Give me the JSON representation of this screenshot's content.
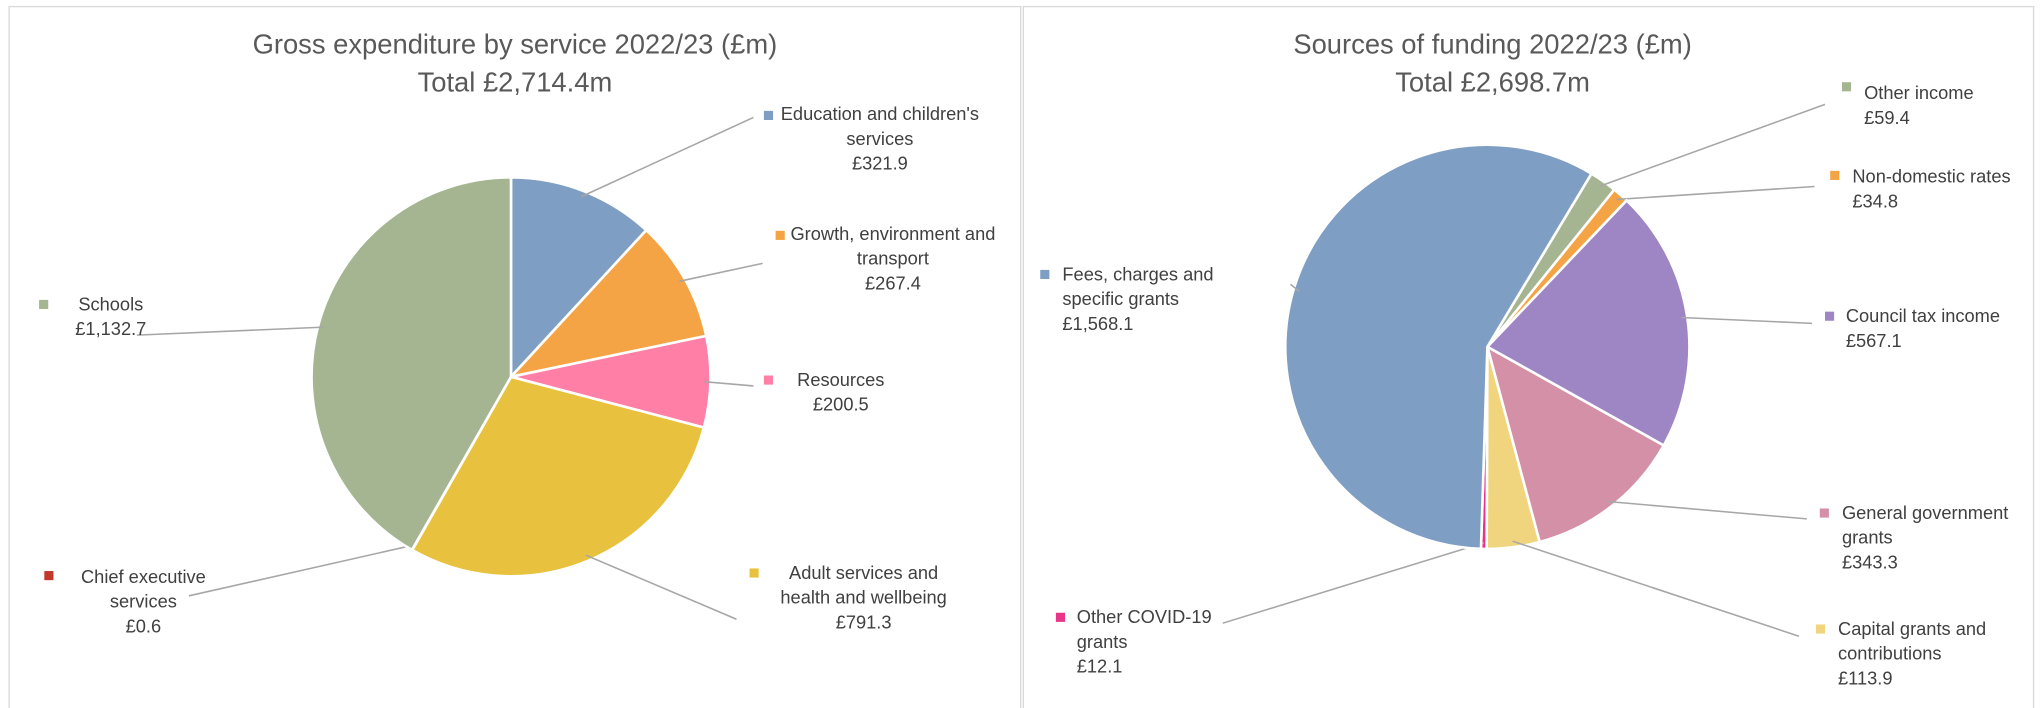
{
  "chart_data": [
    {
      "type": "pie",
      "title": "Gross expenditure by service 2022/23 (£m)",
      "subtitle": "Total £2,714.4m",
      "categories": [
        "Education and children's services",
        "Growth, environment and transport",
        "Resources",
        "Adult services and health and wellbeing",
        "Chief executive services",
        "Schools"
      ],
      "values": [
        321.9,
        267.4,
        200.5,
        791.3,
        0.6,
        1132.7
      ],
      "value_labels": [
        "£321.9",
        "£267.4",
        "£200.5",
        "£791.3",
        "£0.6",
        "£1,132.7"
      ],
      "colors": [
        "#7f9ec4",
        "#f4a444",
        "#ff7fa6",
        "#e8c23e",
        "#c0392b",
        "#a5b592"
      ]
    },
    {
      "type": "pie",
      "title": "Sources of funding 2022/23 (£m)",
      "subtitle": "Total £2,698.7m",
      "categories": [
        "Other income",
        "Non-domestic rates",
        "Council tax income",
        "General government grants",
        "Capital grants and contributions",
        "Other COVID-19 grants",
        "Fees, charges and specific grants"
      ],
      "values": [
        59.4,
        34.8,
        567.1,
        343.3,
        113.9,
        12.1,
        1568.1
      ],
      "value_labels": [
        "£59.4",
        "£34.8",
        "£567.1",
        "£343.3",
        "£113.9",
        "£12.1",
        "£1,568.1"
      ],
      "colors": [
        "#a5b592",
        "#f4a444",
        "#9e86c4",
        "#d490a6",
        "#f0d57e",
        "#e8358a",
        "#7f9ec4"
      ]
    }
  ]
}
